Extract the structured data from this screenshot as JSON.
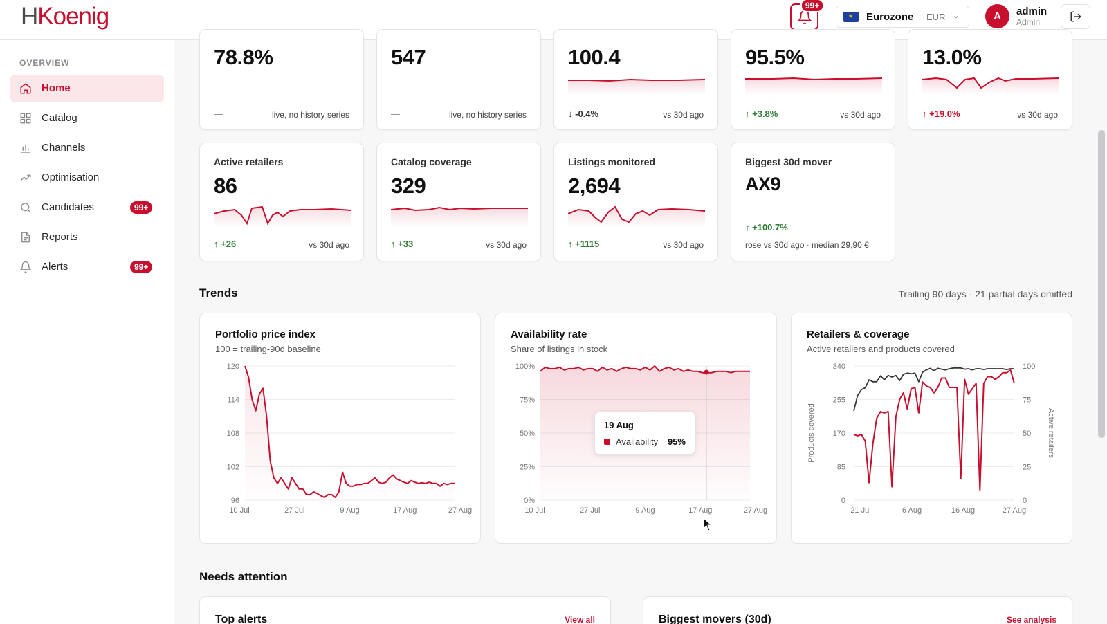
{
  "header": {
    "logo_h": "H",
    "logo_rest": "Koenig",
    "notifications_badge": "99+",
    "region_name": "Eurozone",
    "currency": "EUR",
    "user_initial": "A",
    "user_name": "admin",
    "user_role": "Admin"
  },
  "sidebar": {
    "section": "OVERVIEW",
    "items": [
      {
        "label": "Home",
        "icon": "home-icon",
        "active": true,
        "badge": ""
      },
      {
        "label": "Catalog",
        "icon": "grid-icon",
        "badge": ""
      },
      {
        "label": "Channels",
        "icon": "bar-chart-icon",
        "badge": ""
      },
      {
        "label": "Optimisation",
        "icon": "trend-icon",
        "badge": ""
      },
      {
        "label": "Candidates",
        "icon": "search-icon",
        "badge": "99+"
      },
      {
        "label": "Reports",
        "icon": "document-icon",
        "badge": ""
      },
      {
        "label": "Alerts",
        "icon": "bell-icon",
        "badge": "99+"
      }
    ]
  },
  "kpis_top": [
    {
      "value": "78.8%",
      "delta": "—",
      "ref": "live, no history series"
    },
    {
      "value": "547",
      "delta": "—",
      "ref": "live, no history series"
    },
    {
      "value": "100.4",
      "delta": "-0.4%",
      "ref": "vs 30d ago"
    },
    {
      "value": "95.5%",
      "delta": "+3.8%",
      "ref": "vs 30d ago"
    },
    {
      "value": "13.0%",
      "delta": "+19.0%",
      "ref": "vs 30d ago"
    }
  ],
  "kpis_row2": [
    {
      "label": "Active retailers",
      "value": "86",
      "delta": "+26",
      "ref": "vs 30d ago"
    },
    {
      "label": "Catalog coverage",
      "value": "329",
      "delta": "+33",
      "ref": "vs 30d ago"
    },
    {
      "label": "Listings monitored",
      "value": "2,694",
      "delta": "+1115",
      "ref": "vs 30d ago"
    },
    {
      "label": "Biggest 30d mover",
      "value": "AX9",
      "delta": "+100.7%",
      "sub": "rose vs 30d ago · median 29,90 €"
    }
  ],
  "trends": {
    "title": "Trends",
    "note": "Trailing 90 days · 21 partial days omitted"
  },
  "colors": {
    "accent": "#c8102e",
    "positive": "#2e7d32"
  },
  "chart_data": [
    {
      "type": "line",
      "title": "Portfolio price index",
      "subtitle": "100 = trailing-90d baseline",
      "yticks": [
        "120",
        "114",
        "108",
        "102",
        "96"
      ],
      "xticks": [
        "10 Jul",
        "27 Jul",
        "9 Aug",
        "17 Aug",
        "27 Aug"
      ],
      "ylim": [
        96,
        120
      ],
      "series": [
        {
          "values": [
            120,
            118,
            114,
            112,
            115,
            116,
            111,
            103,
            100,
            99,
            100,
            99,
            98,
            100,
            99,
            98,
            98,
            97,
            97,
            97.5,
            97.2,
            96.8,
            96.5,
            97,
            97,
            96.5,
            97.5,
            101,
            99,
            98.5,
            98.5,
            98.8,
            98.8,
            99,
            99,
            99.5,
            100,
            99.2,
            99,
            99.2,
            100,
            100.5,
            99.8,
            99.5,
            99.2,
            99,
            99.5,
            99.2,
            99,
            99.1,
            99,
            99.2,
            99,
            99,
            98.5,
            99,
            98.8,
            99,
            99
          ]
        }
      ]
    },
    {
      "type": "area",
      "title": "Availability rate",
      "subtitle": "Share of listings in stock",
      "yticks": [
        "100%",
        "75%",
        "50%",
        "25%",
        "0%"
      ],
      "xticks": [
        "10 Jul",
        "27 Jul",
        "9 Aug",
        "17 Aug",
        "27 Aug"
      ],
      "ylim": [
        0,
        100
      ],
      "series": [
        {
          "name": "Availability",
          "values": [
            96,
            99,
            98,
            98,
            99,
            97,
            98,
            98,
            99,
            97,
            98,
            98,
            96,
            99,
            97,
            98,
            96,
            98,
            99,
            98,
            98,
            97,
            99,
            97,
            100,
            96,
            98,
            99,
            97,
            98,
            96,
            97,
            96,
            96,
            95,
            95,
            95,
            96,
            96,
            96,
            95,
            96,
            96,
            96,
            96
          ]
        }
      ],
      "tooltip": {
        "date": "19 Aug",
        "label": "Availability",
        "value": "95%"
      }
    },
    {
      "type": "line",
      "title": "Retailers & coverage",
      "subtitle": "Active retailers and products covered",
      "ylabel_left": "Products covered",
      "ylabel_right": "Active retailers",
      "yticks_left": [
        "340",
        "255",
        "170",
        "85",
        "0"
      ],
      "yticks_right": [
        "100",
        "75",
        "50",
        "25",
        "0"
      ],
      "xticks": [
        "21 Jul",
        "6 Aug",
        "16 Aug",
        "27 Aug"
      ],
      "ylim_left": [
        0,
        340
      ],
      "ylim_right": [
        0,
        100
      ],
      "series": [
        {
          "values": [
            226,
            265,
            280,
            285,
            305,
            300,
            300,
            315,
            305,
            316,
            312,
            316,
            303,
            319,
            322,
            320,
            322,
            300,
            324,
            330,
            334,
            328,
            334,
            332,
            330,
            333,
            335,
            335,
            335,
            332,
            333,
            330,
            333,
            333,
            331,
            333,
            333,
            333,
            333,
            333,
            331,
            333,
            333
          ]
        },
        {
          "values": [
            49,
            48,
            49,
            44,
            13,
            42,
            61,
            66,
            65,
            66,
            10,
            62,
            75,
            80,
            68,
            83,
            84,
            65,
            88,
            85,
            84,
            80,
            84,
            91,
            91,
            84,
            84,
            84,
            16,
            90,
            79,
            83,
            87,
            7,
            87,
            92,
            92,
            90,
            92,
            95,
            95,
            97,
            87
          ]
        }
      ]
    }
  ],
  "needs_attention": {
    "title": "Needs attention",
    "top_alerts": "Top alerts",
    "view_all": "View all",
    "biggest_movers": "Biggest movers (30d)",
    "see_analysis": "See analysis"
  }
}
